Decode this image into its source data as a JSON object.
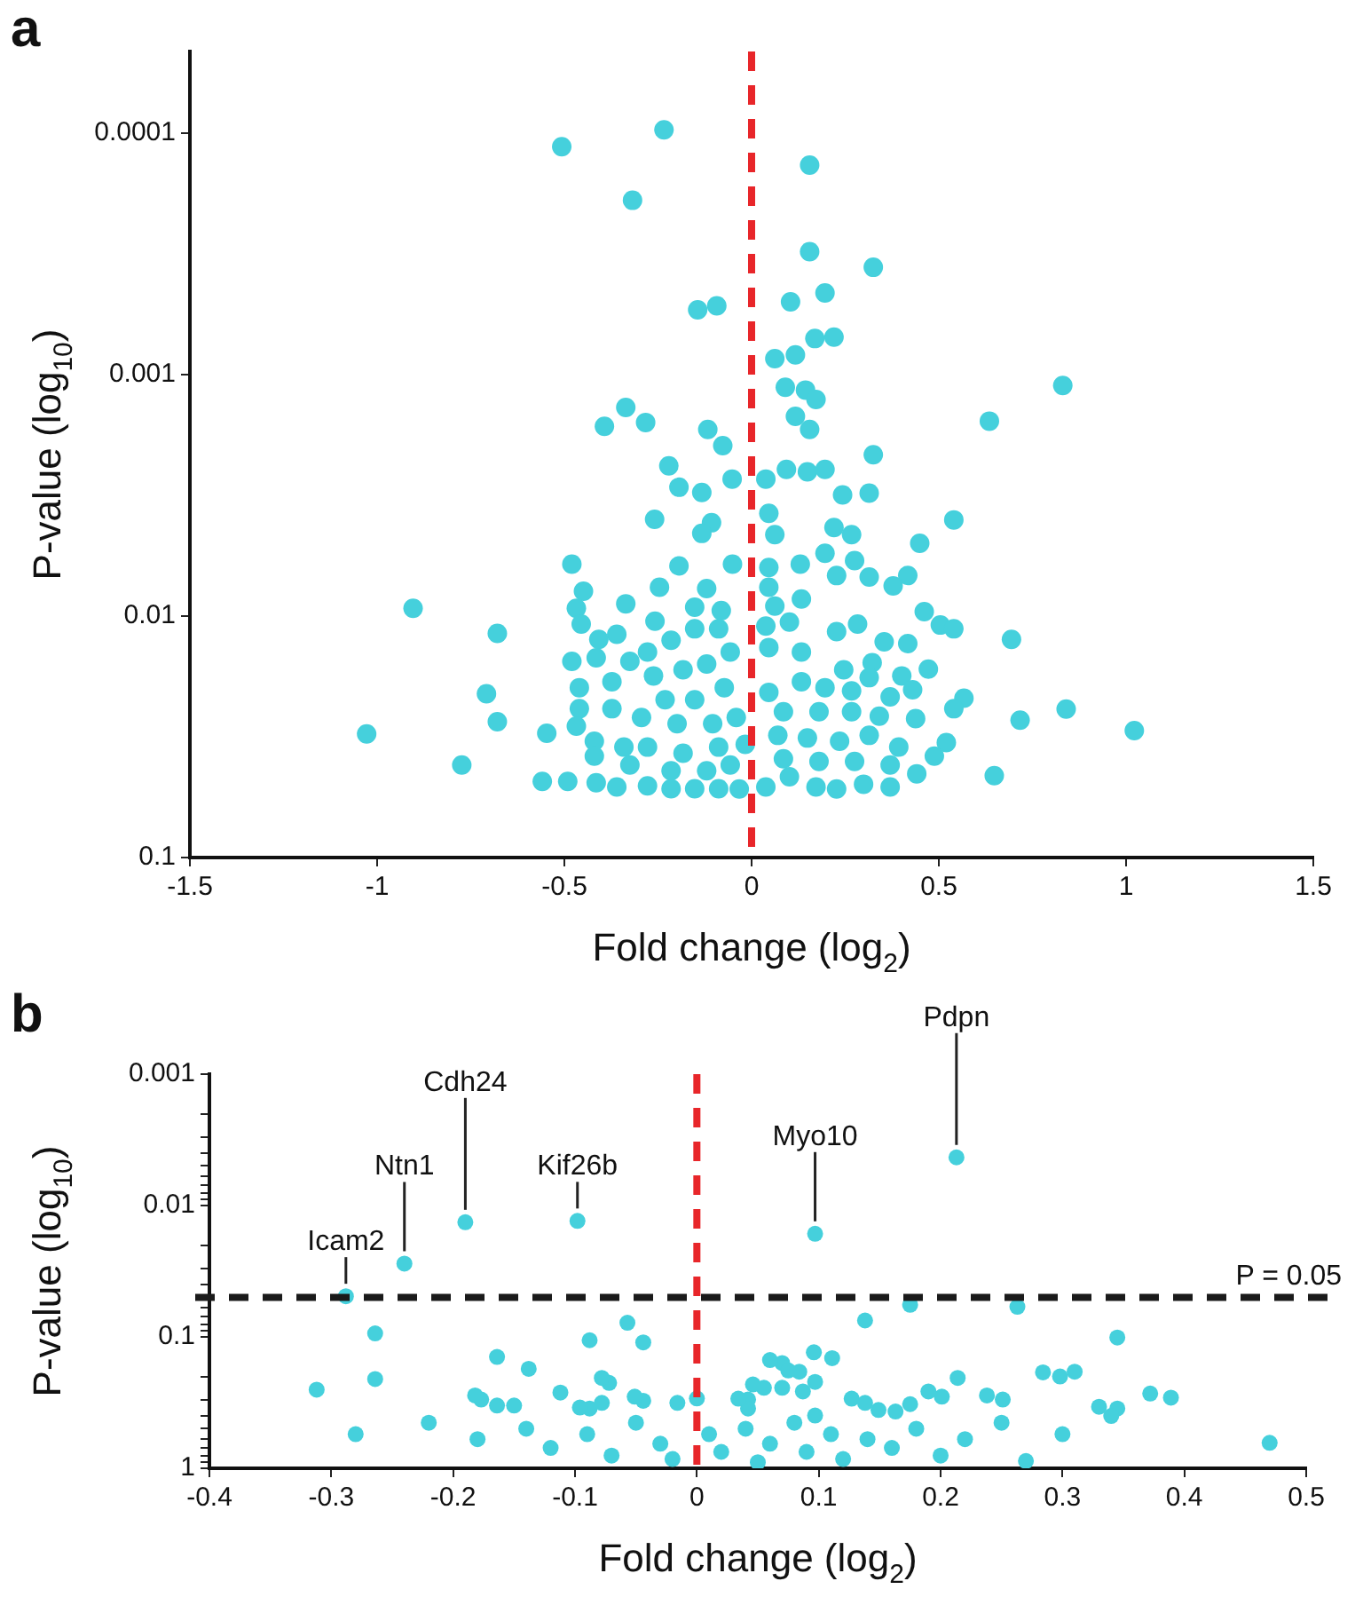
{
  "chart_data": [
    {
      "type": "scatter",
      "title": "a",
      "xlabel": "Fold change (log$_{2}$)",
      "ylabel": "P-value (log$_{10}$)",
      "marker": "circle",
      "legend": false,
      "grid": false,
      "log": "y",
      "xlim": [
        -1.5,
        1.5
      ],
      "xticks": [
        -1.5,
        -1,
        -0.5,
        0,
        0.5,
        1,
        1.5
      ],
      "ylim": [
        0.1,
        4.6e-05
      ],
      "yticks": [
        0.1,
        0.01,
        0.001,
        0.0001
      ],
      "ref_lines": [
        {
          "axis": "x",
          "value": 0,
          "color": "#e8262a",
          "line_style": "dashed"
        }
      ],
      "x": [
        -0.507,
        -0.234,
        -0.318,
        -0.144,
        -0.093,
        -0.336,
        -0.393,
        -0.283,
        -0.117,
        -0.077,
        -0.221,
        -0.194,
        -0.133,
        -0.052,
        -0.259,
        -0.107,
        -0.133,
        -0.48,
        -0.051,
        -0.194,
        -0.449,
        -0.246,
        -0.12,
        -0.336,
        -0.468,
        -0.904,
        -0.679,
        -0.455,
        -0.36,
        -0.408,
        -0.258,
        -0.152,
        -0.081,
        -0.48,
        -0.415,
        -0.325,
        -0.708,
        -0.679,
        -1.028,
        -0.774,
        -0.547,
        -0.559,
        -0.491,
        -0.415,
        -0.36,
        -0.46,
        -0.373,
        -0.46,
        -0.373,
        -0.42,
        -0.341,
        -0.468,
        -0.42,
        -0.278,
        -0.215,
        -0.152,
        -0.088,
        -0.057,
        -0.262,
        -0.183,
        -0.12,
        -0.073,
        -0.231,
        -0.152,
        -0.294,
        -0.199,
        -0.104,
        -0.041,
        -0.278,
        -0.183,
        -0.088,
        -0.017,
        -0.215,
        -0.12,
        -0.057,
        -0.278,
        -0.215,
        -0.152,
        -0.088,
        -0.033,
        -0.325,
        0.155,
        0.155,
        0.325,
        0.104,
        0.196,
        0.169,
        0.22,
        0.062,
        0.117,
        0.831,
        0.09,
        0.144,
        0.172,
        0.635,
        0.117,
        0.155,
        0.325,
        0.093,
        0.149,
        0.196,
        0.038,
        0.243,
        0.314,
        0.046,
        0.54,
        0.062,
        0.22,
        0.267,
        0.449,
        0.196,
        0.275,
        0.046,
        0.13,
        0.227,
        0.314,
        0.417,
        0.378,
        0.046,
        0.133,
        0.062,
        0.461,
        0.504,
        0.54,
        0.694,
        0.038,
        0.101,
        0.283,
        0.354,
        0.417,
        0.046,
        0.227,
        0.133,
        0.322,
        0.246,
        0.472,
        0.401,
        0.43,
        0.314,
        0.267,
        0.37,
        0.567,
        0.54,
        0.84,
        0.717,
        0.438,
        0.341,
        1.022,
        0.046,
        0.133,
        0.196,
        0.085,
        0.18,
        0.267,
        0.07,
        0.149,
        0.235,
        0.314,
        0.393,
        0.52,
        0.488,
        0.441,
        0.648,
        0.038,
        0.101,
        0.172,
        0.227,
        0.299,
        0.37,
        0.085,
        0.18,
        0.275,
        0.37
      ],
      "series": [
        {
          "color": "#45d0dc",
          "values": [
            0.000114,
            9.7e-05,
            0.00019,
            0.00054,
            0.00052,
            0.00137,
            0.00164,
            0.00158,
            0.00169,
            0.00197,
            0.00239,
            0.00293,
            0.00308,
            0.00271,
            0.00398,
            0.00411,
            0.00455,
            0.0061,
            0.0061,
            0.0062,
            0.0079,
            0.0076,
            0.0077,
            0.0089,
            0.0093,
            0.0093,
            0.0118,
            0.0108,
            0.0119,
            0.0125,
            0.0105,
            0.0092,
            0.0095,
            0.0154,
            0.0149,
            0.0154,
            0.021,
            0.0274,
            0.0308,
            0.0414,
            0.0306,
            0.0484,
            0.0484,
            0.049,
            0.051,
            0.0198,
            0.0187,
            0.0242,
            0.0242,
            0.033,
            0.0349,
            0.0286,
            0.038,
            0.0141,
            0.0126,
            0.0113,
            0.0113,
            0.0141,
            0.0177,
            0.0167,
            0.0158,
            0.0198,
            0.0222,
            0.0222,
            0.0263,
            0.0279,
            0.0279,
            0.0263,
            0.0349,
            0.037,
            0.0349,
            0.034,
            0.0437,
            0.0437,
            0.0414,
            0.0505,
            0.0519,
            0.0519,
            0.0519,
            0.052,
            0.0414,
            0.000136,
            0.00031,
            0.00036,
            0.0005,
            0.00046,
            0.00071,
            0.0007,
            0.00086,
            0.00083,
            0.00111,
            0.00113,
            0.00116,
            0.00127,
            0.00156,
            0.00149,
            0.00169,
            0.00215,
            0.00247,
            0.00253,
            0.00247,
            0.00271,
            0.00315,
            0.0031,
            0.00376,
            0.004,
            0.0046,
            0.0043,
            0.0046,
            0.005,
            0.0055,
            0.0059,
            0.0063,
            0.0061,
            0.0068,
            0.0069,
            0.0068,
            0.0075,
            0.0076,
            0.0085,
            0.0091,
            0.0096,
            0.0109,
            0.0113,
            0.0125,
            0.011,
            0.0106,
            0.0108,
            0.0128,
            0.013,
            0.0135,
            0.0116,
            0.0141,
            0.0156,
            0.0167,
            0.0166,
            0.0177,
            0.0202,
            0.018,
            0.0204,
            0.0216,
            0.0219,
            0.0242,
            0.0243,
            0.027,
            0.0266,
            0.026,
            0.0298,
            0.0207,
            0.0187,
            0.0198,
            0.0249,
            0.0249,
            0.0249,
            0.0312,
            0.032,
            0.033,
            0.0312,
            0.0349,
            0.0334,
            0.038,
            0.045,
            0.0458,
            0.051,
            0.0463,
            0.051,
            0.052,
            0.0497,
            0.051,
            0.039,
            0.04,
            0.04,
            0.0414
          ]
        }
      ]
    },
    {
      "type": "scatter",
      "title": "b",
      "xlabel": "Fold change (log$_{2}$)",
      "ylabel": "P-value (log$_{10}$)",
      "marker": "circle",
      "legend": false,
      "grid": false,
      "log": "y",
      "xlim": [
        -0.4,
        0.5
      ],
      "xticks": [
        -0.4,
        -0.3,
        -0.2,
        -0.1,
        0,
        0.1,
        0.2,
        0.3,
        0.4,
        0.5
      ],
      "ylim": [
        1,
        0.001
      ],
      "yticks": [
        0.001,
        {
          "value": 0.002,
          "label": null
        },
        {
          "value": 0.003,
          "label": null
        },
        {
          "value": 0.004,
          "label": null
        },
        {
          "value": 0.005,
          "label": null
        },
        {
          "value": 0.006,
          "label": null
        },
        {
          "value": 0.007,
          "label": null
        },
        {
          "value": 0.008,
          "label": null
        },
        {
          "value": 0.009,
          "label": null
        },
        0.01,
        {
          "value": 0.02,
          "label": null
        },
        {
          "value": 0.03,
          "label": null
        },
        {
          "value": 0.04,
          "label": null
        },
        {
          "value": 0.05,
          "label": null
        },
        {
          "value": 0.06,
          "label": null
        },
        {
          "value": 0.07,
          "label": null
        },
        {
          "value": 0.08,
          "label": null
        },
        {
          "value": 0.09,
          "label": null
        },
        0.1,
        {
          "value": 0.2,
          "label": null
        },
        {
          "value": 0.3,
          "label": null
        },
        {
          "value": 0.4,
          "label": null
        },
        {
          "value": 0.5,
          "label": null
        },
        {
          "value": 0.6,
          "label": null
        },
        {
          "value": 0.7,
          "label": null
        },
        {
          "value": 0.8,
          "label": null
        },
        {
          "value": 0.9,
          "label": null
        },
        1
      ],
      "ref_lines": [
        {
          "axis": "x",
          "value": 0,
          "color": "#e8262a",
          "line_style": "dashed"
        },
        {
          "axis": "y",
          "value": 0.05,
          "label": "P = 0.05",
          "color": "#1a1a1a",
          "line_style": "dashed"
        }
      ],
      "annotations": [
        {
          "text": "Icam2",
          "x": -0.288,
          "y": 0.049
        },
        {
          "text": "Ntn1",
          "x": -0.24,
          "y": 0.0277
        },
        {
          "text": "Cdh24",
          "x": -0.19,
          "y": 0.0134
        },
        {
          "text": "Kif26b",
          "x": -0.098,
          "y": 0.0131
        },
        {
          "text": "Myo10",
          "x": 0.097,
          "y": 0.0164
        },
        {
          "text": "Pdpn",
          "x": 0.213,
          "y": 0.0043
        }
      ],
      "x": [
        -0.288,
        -0.24,
        -0.19,
        -0.098,
        0.097,
        0.213,
        -0.264,
        -0.264,
        -0.312,
        -0.164,
        -0.138,
        -0.088,
        -0.057,
        -0.044,
        -0.112,
        -0.072,
        -0.177,
        -0.164,
        -0.15,
        -0.044,
        -0.088,
        -0.016,
        0,
        0.175,
        0.263,
        0.138,
        0.345,
        0.07,
        0.096,
        0.111,
        0.084,
        0.097,
        0.214,
        0.298,
        0.31,
        0.055,
        0.07,
        0.201,
        0.251,
        0.389,
        0.345,
        0.138,
        0.175,
        0.163,
        0.042,
        0.042,
        0.097,
        -0.182,
        -0.078,
        -0.051,
        -0.078,
        -0.096,
        0.034,
        0.046,
        0.06,
        0.075,
        0.087,
        0.127,
        0.149,
        0.19,
        0.238,
        0.284,
        0.33,
        0.372,
        -0.28,
        -0.22,
        -0.18,
        -0.14,
        -0.12,
        -0.09,
        -0.07,
        -0.05,
        -0.03,
        -0.02,
        0.01,
        0.02,
        0.04,
        0.05,
        0.06,
        0.08,
        0.09,
        0.11,
        0.12,
        0.14,
        0.16,
        0.18,
        0.2,
        0.22,
        0.25,
        0.27,
        0.3,
        0.34,
        0.47
      ],
      "series": [
        {
          "color": "#45d0dc",
          "values": [
            0.049,
            0.0277,
            0.0134,
            0.0131,
            0.0164,
            0.0043,
            0.094,
            0.209,
            0.252,
            0.142,
            0.175,
            0.106,
            0.078,
            0.11,
            0.265,
            0.224,
            0.3,
            0.333,
            0.333,
            0.306,
            0.351,
            0.318,
            0.294,
            0.057,
            0.059,
            0.075,
            0.101,
            0.158,
            0.131,
            0.145,
            0.184,
            0.22,
            0.205,
            0.2,
            0.184,
            0.244,
            0.244,
            0.285,
            0.3,
            0.29,
            0.351,
            0.318,
            0.325,
            0.37,
            0.3,
            0.351,
            0.397,
            0.279,
            0.205,
            0.285,
            0.318,
            0.345,
            0.295,
            0.23,
            0.15,
            0.18,
            0.26,
            0.295,
            0.36,
            0.26,
            0.279,
            0.186,
            0.34,
            0.27,
            0.55,
            0.45,
            0.6,
            0.5,
            0.7,
            0.55,
            0.8,
            0.45,
            0.65,
            0.85,
            0.55,
            0.75,
            0.5,
            0.9,
            0.65,
            0.45,
            0.75,
            0.55,
            0.85,
            0.6,
            0.7,
            0.5,
            0.8,
            0.6,
            0.45,
            0.88,
            0.55,
            0.4,
            0.64
          ]
        }
      ]
    }
  ]
}
